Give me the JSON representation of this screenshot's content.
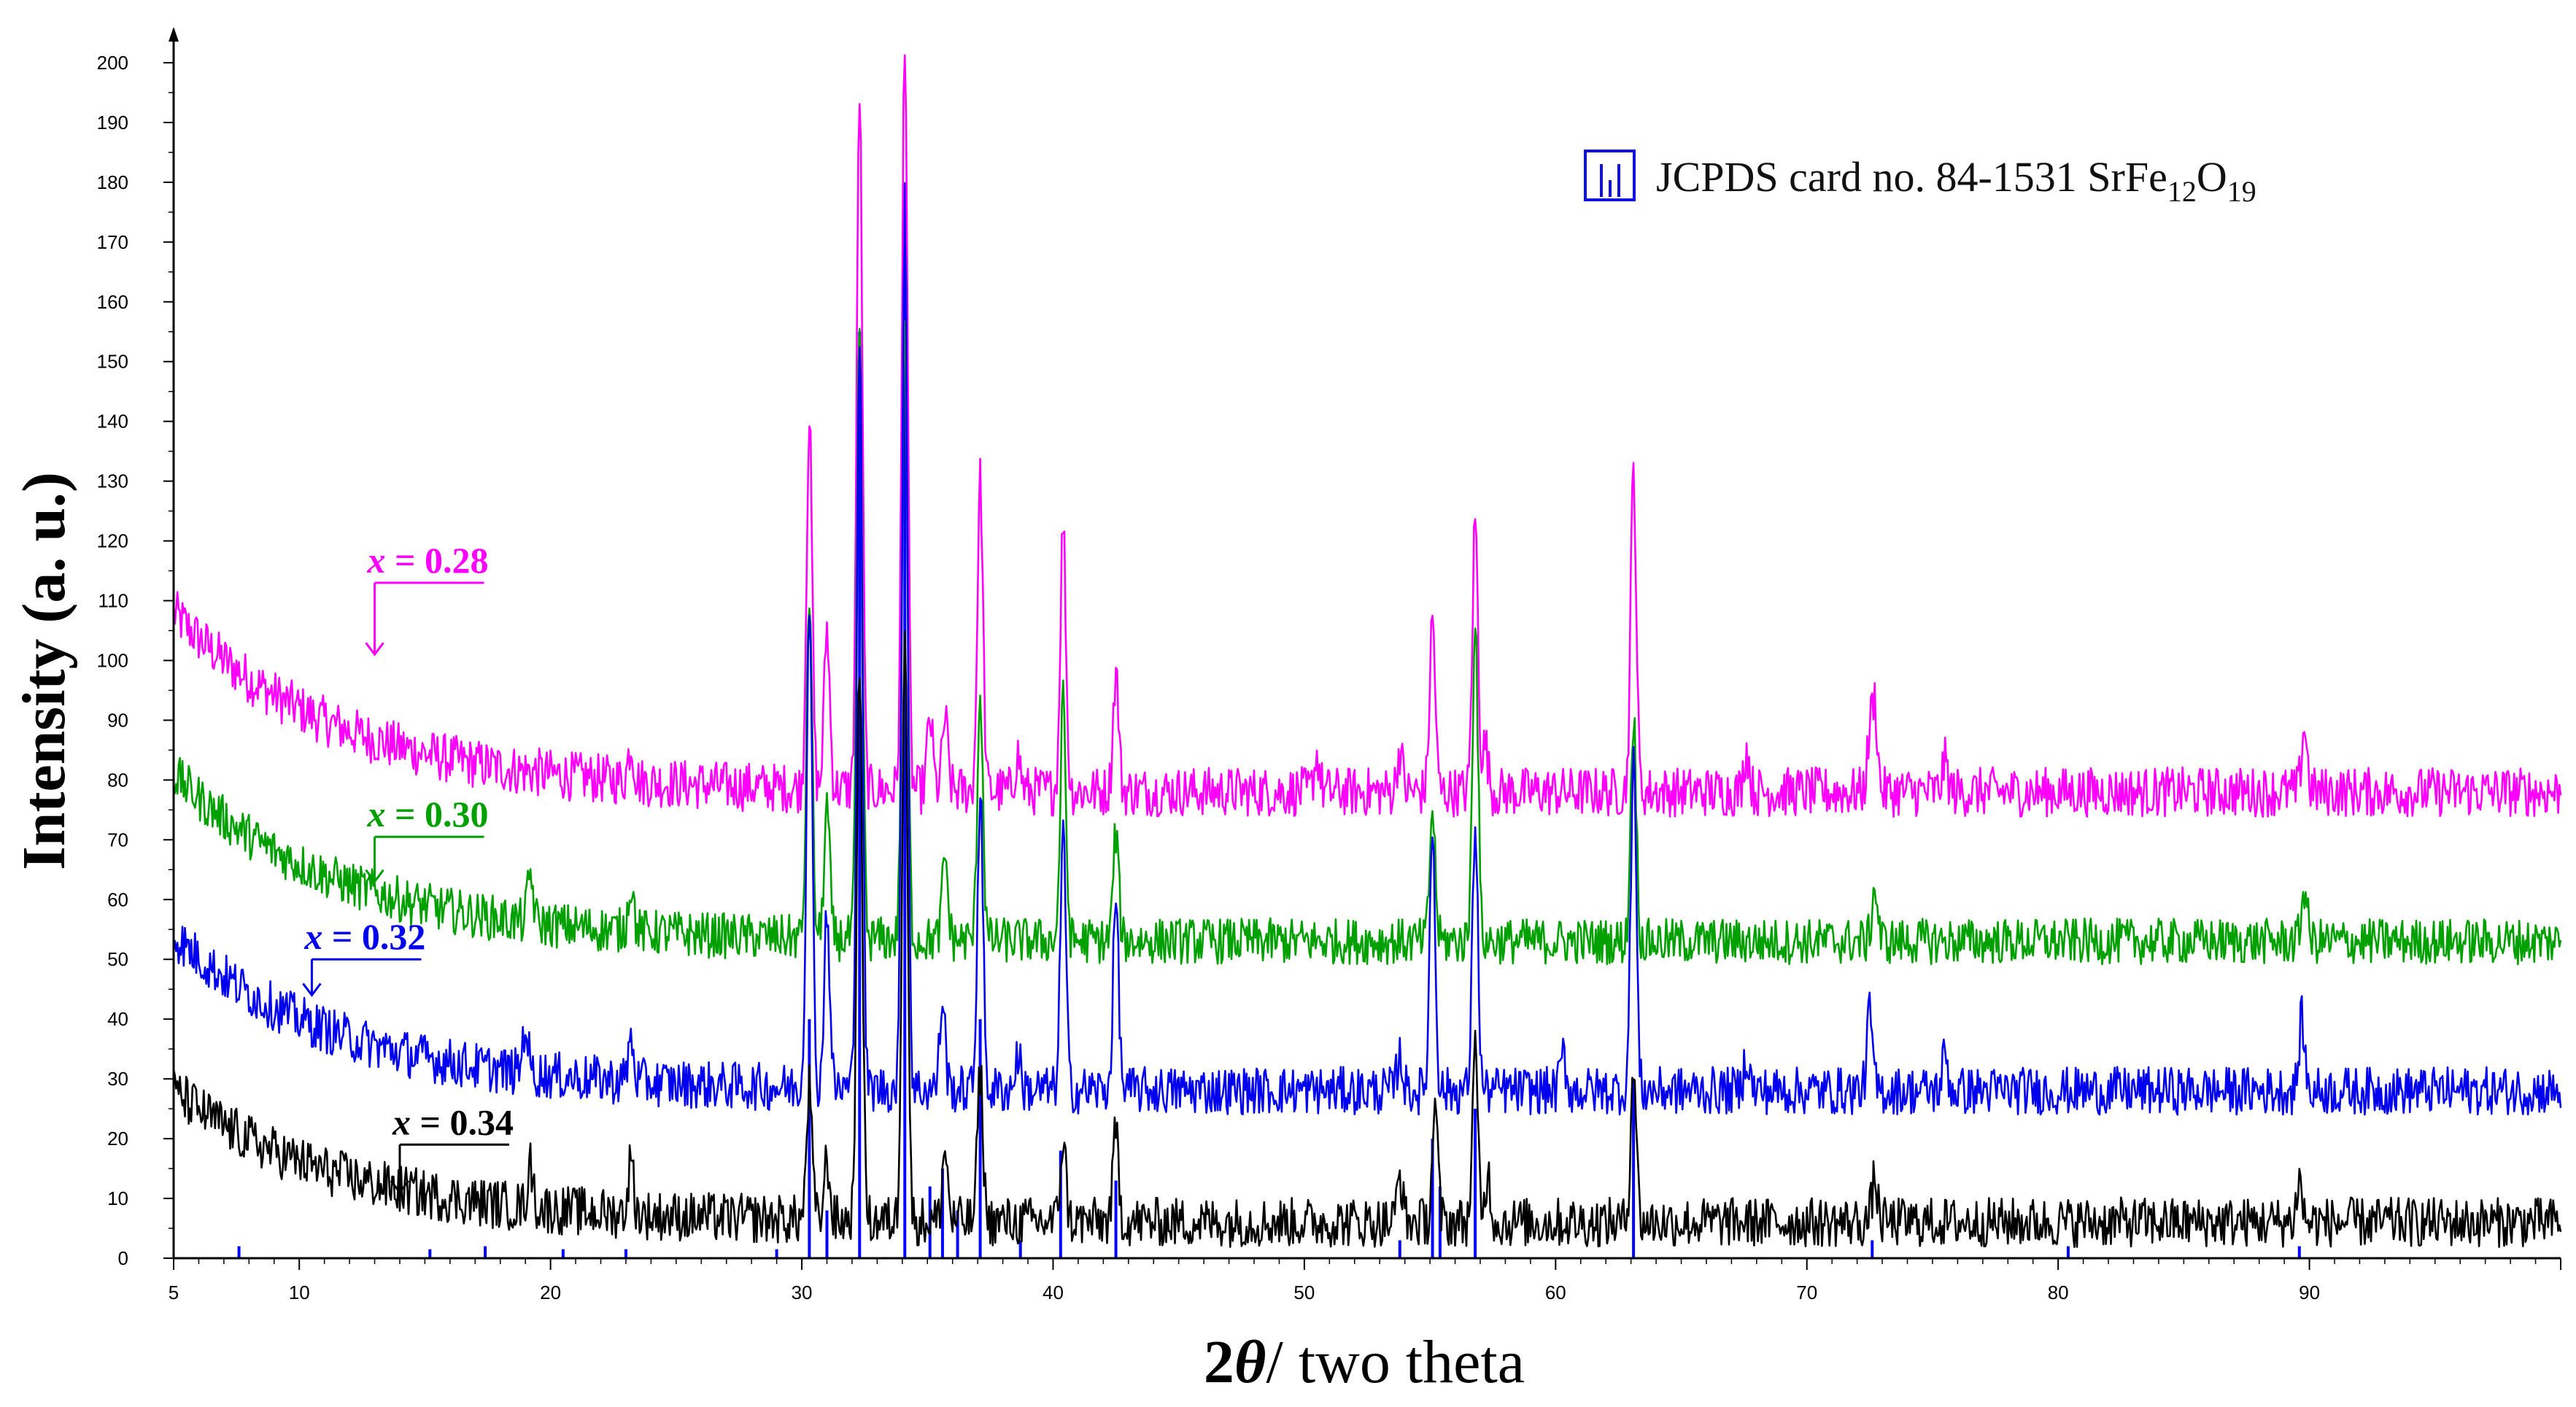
{
  "chart_data": {
    "type": "line",
    "title": "",
    "xlabel_prefix": "2",
    "xlabel_symbol": "θ",
    "xlabel_suffix": "/ two theta",
    "ylabel": "Intensity (a. u.)",
    "xlim": [
      5,
      100
    ],
    "ylim": [
      0,
      205
    ],
    "x_ticks": [
      5,
      10,
      20,
      30,
      40,
      50,
      60,
      70,
      80,
      90
    ],
    "y_ticks": [
      0,
      10,
      20,
      30,
      40,
      50,
      60,
      70,
      80,
      90,
      100,
      110,
      120,
      130,
      140,
      150,
      160,
      170,
      180,
      190,
      200
    ],
    "legend": {
      "position": "top-right",
      "text_main": "JCPDS card no. 84-1531  SrFe",
      "sub1": "12",
      "mid": "O",
      "sub2": "19",
      "color": "#1010e0"
    },
    "reference_peaks": {
      "name": "JCPDS card no. 84-1531 SrFe12O19",
      "color": "#0000ff",
      "x": [
        7.6,
        15.2,
        17.4,
        20.5,
        23.0,
        29.0,
        30.3,
        31.0,
        32.3,
        34.1,
        35.1,
        35.6,
        36.2,
        37.1,
        38.7,
        40.3,
        42.5,
        53.8,
        55.1,
        55.4,
        56.8,
        63.1,
        72.6,
        80.4,
        89.6
      ],
      "height": [
        2,
        1.5,
        2,
        1.5,
        1.5,
        1.5,
        40,
        8,
        155,
        180,
        12,
        15,
        8,
        40,
        3,
        18,
        13,
        3,
        20,
        12,
        25,
        30,
        3,
        2,
        2
      ]
    },
    "series": [
      {
        "name": "x = 0.28",
        "color": "#ff00ff",
        "baseline": 78,
        "start_offset": 30,
        "noise": 2.6,
        "peaks": [
          [
            23.2,
            6
          ],
          [
            30.3,
            62
          ],
          [
            31.0,
            27
          ],
          [
            32.3,
            117
          ],
          [
            34.1,
            127
          ],
          [
            35.1,
            12
          ],
          [
            35.7,
            12
          ],
          [
            37.1,
            52
          ],
          [
            38.6,
            6
          ],
          [
            40.4,
            45
          ],
          [
            42.5,
            20
          ],
          [
            50.5,
            6
          ],
          [
            53.8,
            7
          ],
          [
            55.1,
            29
          ],
          [
            56.8,
            46
          ],
          [
            57.2,
            8
          ],
          [
            63.1,
            54
          ],
          [
            67.6,
            7
          ],
          [
            72.5,
            8
          ],
          [
            72.7,
            14
          ],
          [
            75.5,
            5
          ],
          [
            89.8,
            11
          ]
        ],
        "annotation": {
          "label_var": "x",
          "label_value": " = 0.28",
          "x": 13.0,
          "y": 113,
          "arrow_to_y": 101
        }
      },
      {
        "name": "x = 0.30",
        "color": "#00a000",
        "baseline": 53,
        "start_offset": 28,
        "noise": 2.4,
        "peaks": [
          [
            19.2,
            8
          ],
          [
            23.2,
            8
          ],
          [
            30.3,
            58
          ],
          [
            31.0,
            22
          ],
          [
            32.3,
            102
          ],
          [
            34.1,
            103
          ],
          [
            35.7,
            14
          ],
          [
            37.1,
            42
          ],
          [
            40.4,
            40
          ],
          [
            42.5,
            18
          ],
          [
            55.1,
            22
          ],
          [
            56.8,
            55
          ],
          [
            63.1,
            38
          ],
          [
            72.7,
            9
          ],
          [
            89.8,
            9
          ]
        ],
        "annotation": {
          "label_var": "x",
          "label_value": " = 0.30",
          "x": 13.0,
          "y": 70.5,
          "arrow_to_y": 63
        }
      },
      {
        "name": "x = 0.32",
        "color": "#0000ee",
        "baseline": 28,
        "start_offset": 26,
        "noise": 2.5,
        "peaks": [
          [
            19.0,
            8
          ],
          [
            23.2,
            7
          ],
          [
            30.3,
            83
          ],
          [
            31.0,
            30
          ],
          [
            32.3,
            127
          ],
          [
            34.1,
            148
          ],
          [
            35.6,
            15
          ],
          [
            37.1,
            50
          ],
          [
            38.6,
            6
          ],
          [
            40.4,
            43
          ],
          [
            42.5,
            32
          ],
          [
            53.8,
            6
          ],
          [
            55.1,
            44
          ],
          [
            56.8,
            45
          ],
          [
            60.3,
            6
          ],
          [
            63.1,
            57
          ],
          [
            67.6,
            6
          ],
          [
            72.5,
            13
          ],
          [
            75.5,
            6
          ],
          [
            89.7,
            12
          ]
        ],
        "annotation": {
          "label_var": "x",
          "label_value": " = 0.32",
          "x": 10.5,
          "y": 50,
          "arrow_to_y": 44
        }
      },
      {
        "name": "x = 0.34",
        "color": "#000000",
        "baseline": 6,
        "start_offset": 22,
        "noise": 2.6,
        "peaks": [
          [
            19.2,
            7
          ],
          [
            23.2,
            9
          ],
          [
            30.3,
            22
          ],
          [
            31.0,
            10
          ],
          [
            32.3,
            93
          ],
          [
            34.1,
            100
          ],
          [
            35.7,
            12
          ],
          [
            37.1,
            25
          ],
          [
            40.4,
            14
          ],
          [
            42.5,
            15
          ],
          [
            53.8,
            8
          ],
          [
            55.2,
            19
          ],
          [
            56.8,
            28
          ],
          [
            57.3,
            8
          ],
          [
            63.1,
            27
          ],
          [
            72.7,
            7
          ],
          [
            89.6,
            7
          ]
        ],
        "annotation": {
          "label_var": "x",
          "label_value": " = 0.34",
          "x": 14.0,
          "y": 19,
          "arrow_to_y": 11
        }
      }
    ]
  }
}
